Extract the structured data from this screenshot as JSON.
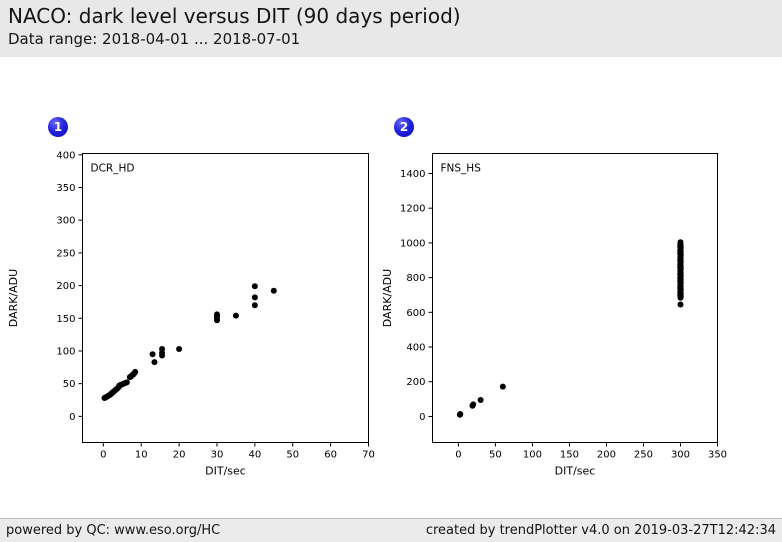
{
  "header": {
    "title": "NACO: dark level versus DIT (90 days period)",
    "subtitle": "Data range: 2018-04-01 ... 2018-07-01"
  },
  "footer": {
    "left": "powered by QC: www.eso.org/HC",
    "right": "created by trendPlotter v4.0 on 2019-03-27T12:42:34"
  },
  "colors": {
    "badge_blue": "#1c1cd6",
    "marker": "#000000",
    "axis": "#000000",
    "header_bg": "#e8e8e8",
    "footer_bg": "#ebebeb"
  },
  "chart_data": [
    {
      "type": "scatter",
      "badge": "1",
      "panel_label": "DCR_HD",
      "xlabel": "DIT/sec",
      "ylabel": "DARK/ADU",
      "xlim": [
        -5.5,
        70
      ],
      "ylim": [
        -40,
        402
      ],
      "xticks": [
        0,
        10,
        20,
        30,
        40,
        50,
        60,
        70
      ],
      "yticks": [
        0,
        50,
        100,
        150,
        200,
        250,
        300,
        350,
        400
      ],
      "grid": false,
      "marker_radius": 3,
      "points": [
        [
          0.3,
          28
        ],
        [
          0.6,
          29
        ],
        [
          0.9,
          30
        ],
        [
          1.2,
          31
        ],
        [
          1.5,
          32
        ],
        [
          1.8,
          33
        ],
        [
          2.1,
          35
        ],
        [
          2.4,
          36
        ],
        [
          2.7,
          38
        ],
        [
          3.0,
          39
        ],
        [
          3.3,
          41
        ],
        [
          3.6,
          42
        ],
        [
          3.9,
          44
        ],
        [
          4.2,
          46
        ],
        [
          4.2,
          47
        ],
        [
          4.5,
          48
        ],
        [
          5.0,
          49
        ],
        [
          5.4,
          50
        ],
        [
          5.8,
          51
        ],
        [
          6.2,
          52
        ],
        [
          7.0,
          60
        ],
        [
          7.3,
          61
        ],
        [
          7.6,
          63
        ],
        [
          7.9,
          64
        ],
        [
          8.2,
          66
        ],
        [
          8.4,
          68
        ],
        [
          13.0,
          95
        ],
        [
          13.5,
          83
        ],
        [
          15.5,
          93
        ],
        [
          15.5,
          97
        ],
        [
          15.5,
          103
        ],
        [
          20,
          103
        ],
        [
          30,
          147
        ],
        [
          30,
          150
        ],
        [
          30,
          153
        ],
        [
          30,
          156
        ],
        [
          35,
          154
        ],
        [
          40,
          170
        ],
        [
          40,
          182
        ],
        [
          40,
          199
        ],
        [
          45,
          192
        ]
      ]
    },
    {
      "type": "scatter",
      "badge": "2",
      "panel_label": "FNS_HS",
      "xlabel": "DIT/sec",
      "ylabel": "DARK/ADU",
      "xlim": [
        -35,
        350
      ],
      "ylim": [
        -150,
        1515
      ],
      "xticks": [
        0,
        50,
        100,
        150,
        200,
        250,
        300,
        350
      ],
      "yticks": [
        0,
        200,
        400,
        600,
        800,
        1000,
        1200,
        1400
      ],
      "grid": false,
      "marker_radius": 3,
      "points": [
        [
          2,
          10
        ],
        [
          2.5,
          14
        ],
        [
          19,
          62
        ],
        [
          20,
          70
        ],
        [
          30,
          95
        ],
        [
          60,
          172
        ],
        [
          300,
          645
        ],
        [
          300,
          684
        ],
        [
          300.4,
          692
        ],
        [
          299.6,
          700
        ],
        [
          300.3,
          708
        ],
        [
          299.7,
          716
        ],
        [
          300,
          724
        ],
        [
          300.4,
          732
        ],
        [
          299.6,
          740
        ],
        [
          300.2,
          748
        ],
        [
          299.8,
          756
        ],
        [
          300,
          764
        ],
        [
          300.4,
          772
        ],
        [
          299.6,
          780
        ],
        [
          300.3,
          788
        ],
        [
          299.7,
          796
        ],
        [
          300,
          804
        ],
        [
          300.4,
          812
        ],
        [
          299.6,
          820
        ],
        [
          300.2,
          828
        ],
        [
          299.8,
          836
        ],
        [
          300,
          844
        ],
        [
          300.4,
          852
        ],
        [
          299.6,
          860
        ],
        [
          300.3,
          868
        ],
        [
          299.7,
          876
        ],
        [
          300,
          884
        ],
        [
          300.4,
          892
        ],
        [
          299.6,
          900
        ],
        [
          300.2,
          908
        ],
        [
          299.8,
          916
        ],
        [
          300,
          924
        ],
        [
          300.4,
          932
        ],
        [
          299.6,
          940
        ],
        [
          300.3,
          948
        ],
        [
          299.7,
          956
        ],
        [
          300,
          964
        ],
        [
          300.4,
          972
        ],
        [
          299.6,
          980
        ],
        [
          300.2,
          988
        ],
        [
          299.8,
          996
        ],
        [
          300,
          1004
        ]
      ]
    }
  ]
}
